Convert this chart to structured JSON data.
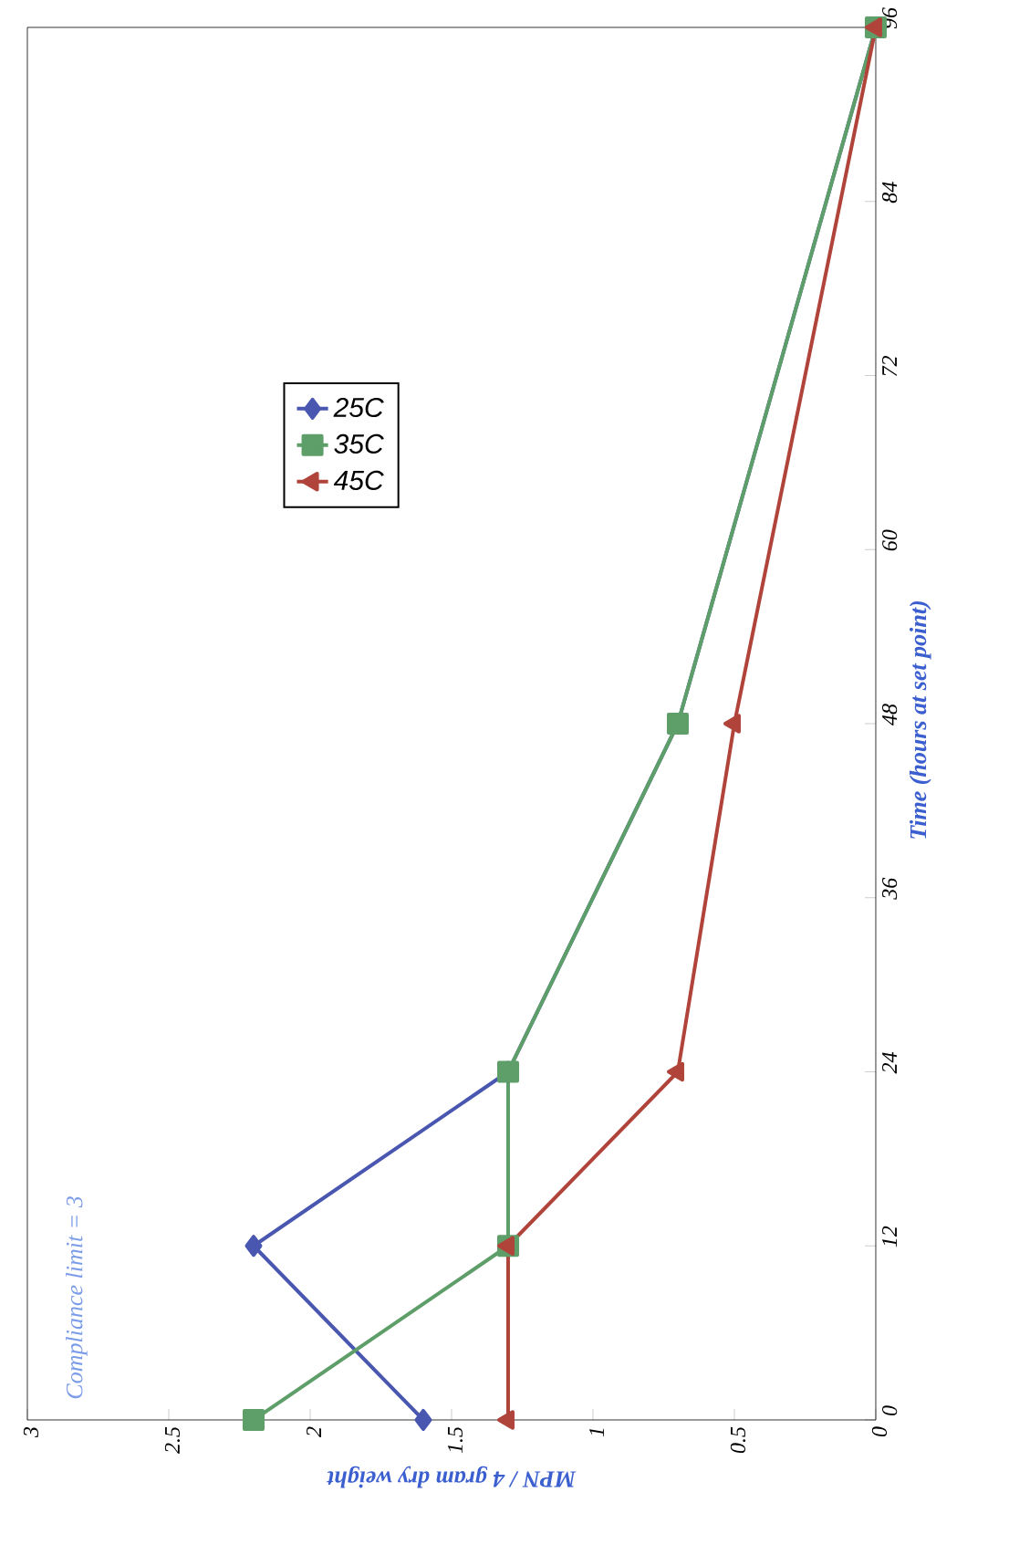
{
  "chart_data": {
    "type": "line",
    "xlabel": "MPN / 4 gram dry weight",
    "ylabel": "Time (hours at set point)",
    "series": [
      {
        "name": "25C",
        "color": "#4a57b0",
        "marker": "diamond",
        "x": [
          1.6,
          2.2,
          1.3,
          0.7,
          0
        ],
        "values": [
          0,
          12,
          24,
          48,
          96
        ]
      },
      {
        "name": "35C",
        "color": "#5e9e68",
        "marker": "square",
        "x": [
          2.2,
          1.3,
          1.3,
          0.7,
          0
        ],
        "values": [
          0,
          12,
          24,
          48,
          96
        ]
      },
      {
        "name": "45C",
        "color": "#b0443a",
        "marker": "triangle",
        "x": [
          1.3,
          1.3,
          0.7,
          0.5,
          0
        ],
        "values": [
          0,
          12,
          24,
          48,
          96
        ]
      }
    ],
    "xlim": [
      3,
      0
    ],
    "xticks": [
      0,
      0.5,
      1,
      1.5,
      2,
      2.5,
      3
    ],
    "ylim": [
      0,
      96
    ],
    "yticks": [
      0,
      12,
      24,
      36,
      48,
      60,
      72,
      84,
      96
    ],
    "annotations": [
      "Compliance limit = 3"
    ],
    "legend": "top left",
    "grid": false,
    "line_style": "solid"
  }
}
